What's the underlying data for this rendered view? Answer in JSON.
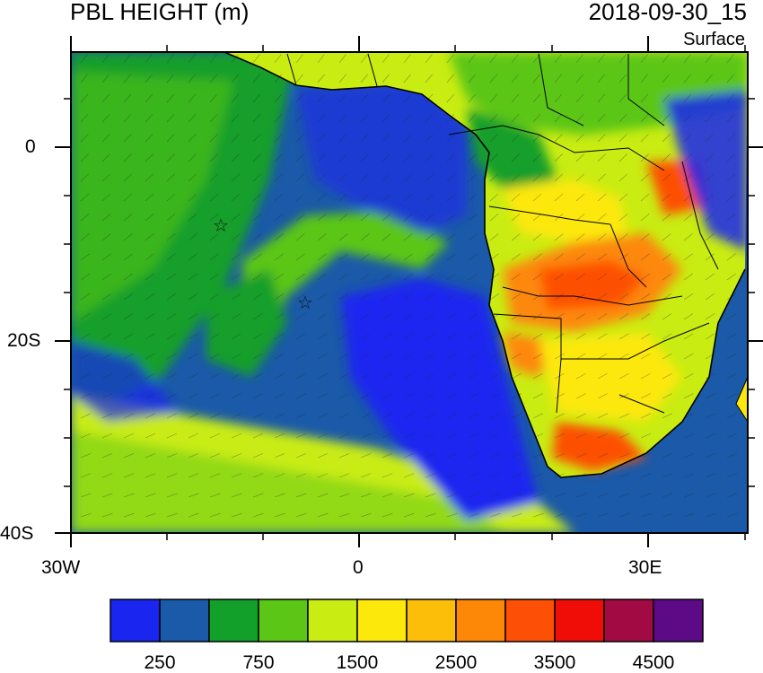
{
  "title": "PBL HEIGHT (m)",
  "valid_time": "2018-09-30_15",
  "level": "Surface",
  "lon_labels": [
    "30W",
    "0",
    "30E"
  ],
  "lat_labels": [
    "0",
    "20S",
    "40S"
  ],
  "colorbar": {
    "colors": [
      "#1a25f0",
      "#1b5aa8",
      "#129f2a",
      "#5bc615",
      "#c9ec12",
      "#fde80b",
      "#fdbe0a",
      "#fd8807",
      "#fd4f06",
      "#f10d07",
      "#a10a43",
      "#5d0a86"
    ],
    "tick_labels": [
      "250",
      "750",
      "1500",
      "2500",
      "3500",
      "4500"
    ]
  }
}
